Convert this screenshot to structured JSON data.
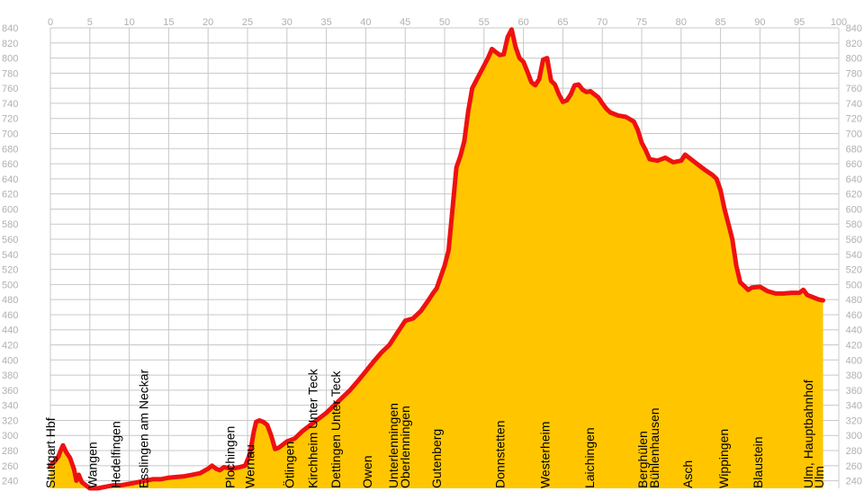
{
  "chart_data": {
    "type": "area",
    "title": "",
    "xlabel": "",
    "ylabel": "",
    "xlim": [
      0,
      100
    ],
    "ylim": [
      230,
      840
    ],
    "x_ticks": [
      "0",
      "5",
      "10",
      "15",
      "20",
      "25",
      "30",
      "35",
      "40",
      "45",
      "50",
      "55",
      "60",
      "65",
      "70",
      "75",
      "80",
      "85",
      "90",
      "95",
      "100"
    ],
    "y_ticks": [
      "240",
      "260",
      "280",
      "300",
      "320",
      "340",
      "360",
      "380",
      "400",
      "420",
      "440",
      "460",
      "480",
      "500",
      "520",
      "540",
      "560",
      "580",
      "600",
      "620",
      "640",
      "660",
      "680",
      "700",
      "720",
      "740",
      "760",
      "780",
      "800",
      "820",
      "840"
    ],
    "grid": true,
    "colors": {
      "fill": "#ffc600",
      "line": "#ee1111",
      "grid": "#c8c8c8",
      "tick_text": "#b0b0b0",
      "label_text": "#000000"
    },
    "series": [
      {
        "x": [
          0,
          0.5,
          1.0,
          1.3,
          1.6,
          2.0,
          2.5,
          3.0,
          3.3,
          3.6,
          4.0,
          4.5,
          5.0,
          6.0,
          7.0,
          8.0,
          9.0,
          10.0,
          11.0,
          12.0,
          13.0,
          14.0,
          15.0,
          16.0,
          17.0,
          18.0,
          19.0,
          20.0,
          20.5,
          21.0,
          21.5,
          22.0,
          23.0,
          24.0,
          24.7,
          25.3,
          25.8,
          26.1,
          26.5,
          27.0,
          27.5,
          28.0,
          28.5,
          29.0,
          29.5,
          30.0,
          31.0,
          32.0,
          33.0,
          34.0,
          35.0,
          36.0,
          37.0,
          38.0,
          39.0,
          40.0,
          41.0,
          42.0,
          43.0,
          44.0,
          45.0,
          46.0,
          47.0,
          48.0,
          48.5,
          49.0,
          49.5,
          50.0,
          50.5,
          51.0,
          51.5,
          52.0,
          52.5,
          53.0,
          53.5,
          54.0,
          54.5,
          55.0,
          55.5,
          56.0,
          56.5,
          57.0,
          57.5,
          58.0,
          58.5,
          59.0,
          59.5,
          60.0,
          60.5,
          61.0,
          61.5,
          62.0,
          62.5,
          63.0,
          63.5,
          64.0,
          64.5,
          65.0,
          65.5,
          66.0,
          66.5,
          67.0,
          67.5,
          68.0,
          68.5,
          69.0,
          69.5,
          70.0,
          70.5,
          71.0,
          72.0,
          73.0,
          74.0,
          74.5,
          75.0,
          75.5,
          76.0,
          77.0,
          78.0,
          79.0,
          80.0,
          80.5,
          81.0,
          82.0,
          83.0,
          84.0,
          84.5,
          85.0,
          85.5,
          86.0,
          86.5,
          87.0,
          87.5,
          88.0,
          88.5,
          89.0,
          90.0,
          91.0,
          92.0,
          93.0,
          94.0,
          95.0,
          95.5,
          96.0,
          97.0,
          97.5,
          98.0
        ],
        "values": [
          260,
          265,
          272,
          280,
          287,
          278,
          270,
          255,
          240,
          248,
          238,
          234,
          230,
          230,
          232,
          234,
          234,
          236,
          238,
          240,
          242,
          242,
          244,
          245,
          246,
          248,
          250,
          256,
          260,
          256,
          254,
          258,
          256,
          258,
          260,
          275,
          305,
          318,
          320,
          318,
          314,
          300,
          282,
          284,
          288,
          292,
          296,
          306,
          314,
          322,
          330,
          340,
          350,
          360,
          372,
          385,
          398,
          410,
          420,
          436,
          452,
          455,
          465,
          480,
          488,
          495,
          510,
          525,
          545,
          600,
          655,
          670,
          690,
          730,
          760,
          770,
          780,
          790,
          800,
          812,
          808,
          804,
          805,
          828,
          838,
          815,
          800,
          795,
          782,
          768,
          764,
          772,
          798,
          800,
          770,
          765,
          752,
          742,
          744,
          752,
          764,
          765,
          758,
          755,
          756,
          752,
          748,
          740,
          733,
          728,
          724,
          722,
          716,
          705,
          688,
          678,
          666,
          664,
          668,
          662,
          664,
          672,
          668,
          660,
          652,
          645,
          640,
          625,
          600,
          580,
          560,
          525,
          503,
          498,
          493,
          496,
          497,
          491,
          488,
          488,
          489,
          489,
          493,
          486,
          482,
          480,
          479
        ]
      }
    ],
    "annotations": [
      {
        "label": "Stuttgart Hbf",
        "x": 0.0
      },
      {
        "label": "Wangen",
        "x": 5.3
      },
      {
        "label": "Hedelfingen",
        "x": 8.3
      },
      {
        "label": "Esslingen am Neckar",
        "x": 11.8
      },
      {
        "label": "Plochingen",
        "x": 22.8
      },
      {
        "label": "Wernau",
        "x": 25.3
      },
      {
        "label": "Ötlingen",
        "x": 30.3
      },
      {
        "label": "Kirchheim Unter Teck",
        "x": 33.3
      },
      {
        "label": "Dettingen Unter Teck",
        "x": 36.2
      },
      {
        "label": "Owen",
        "x": 40.2
      },
      {
        "label": "Unterlenningen",
        "x": 43.5
      },
      {
        "label": "Oberlenningen",
        "x": 45.0
      },
      {
        "label": "Gutenberg",
        "x": 49.0
      },
      {
        "label": "Donnstetten",
        "x": 57.0
      },
      {
        "label": "Westerheim",
        "x": 62.7
      },
      {
        "label": "Laichingen",
        "x": 68.4
      },
      {
        "label": "Berghülen",
        "x": 75.1
      },
      {
        "label": "Bühlenhausen",
        "x": 76.6
      },
      {
        "label": "Asch",
        "x": 80.8
      },
      {
        "label": "Wippingen",
        "x": 85.4
      },
      {
        "label": "Blaustein",
        "x": 89.7
      },
      {
        "label": "Ulm, Hauptbahnhof",
        "x": 96.1
      },
      {
        "label": "Ulm",
        "x": 97.5
      }
    ]
  }
}
